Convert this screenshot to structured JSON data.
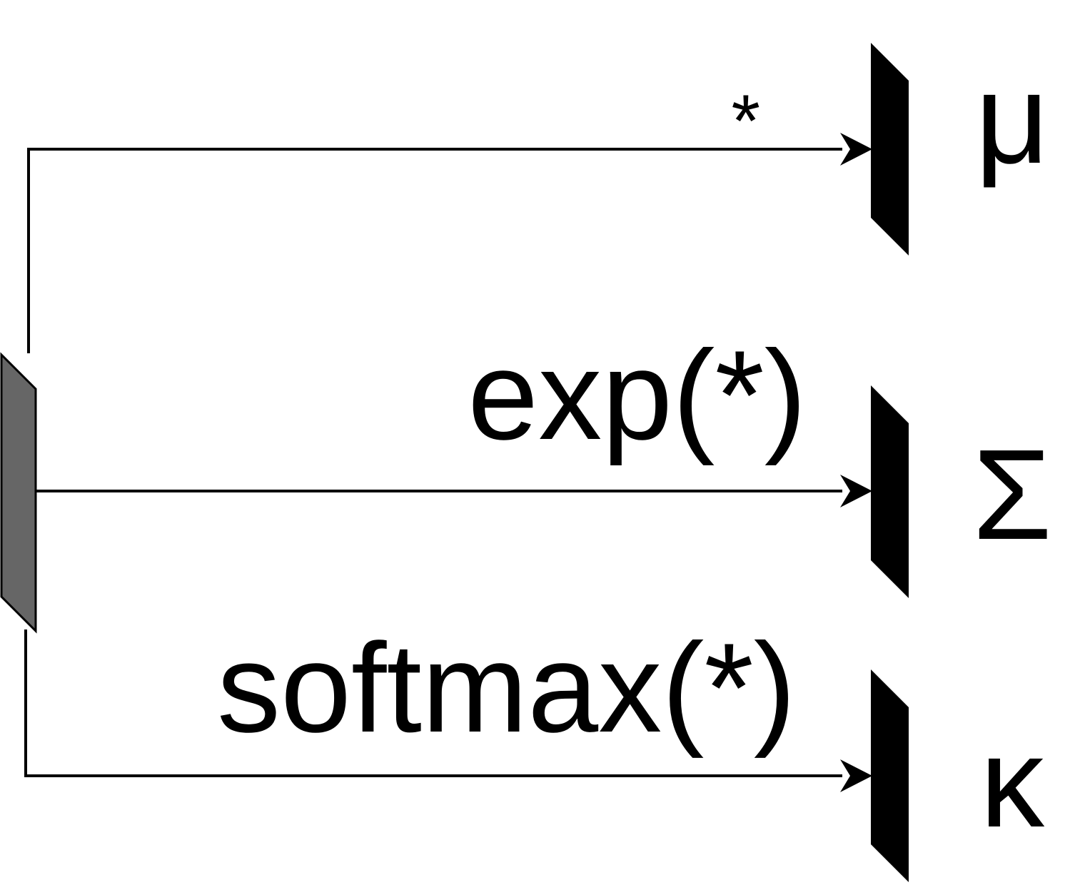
{
  "diagram": {
    "colors": {
      "line": "#000000",
      "source_block": "#666666",
      "output_block": "#000000",
      "background": "#ffffff"
    },
    "branches": [
      {
        "id": "mu",
        "operation": "*",
        "output": "μ"
      },
      {
        "id": "sigma",
        "operation": "exp(*)",
        "output": "Σ"
      },
      {
        "id": "kappa",
        "operation": "softmax(*)",
        "output": "κ"
      }
    ]
  }
}
